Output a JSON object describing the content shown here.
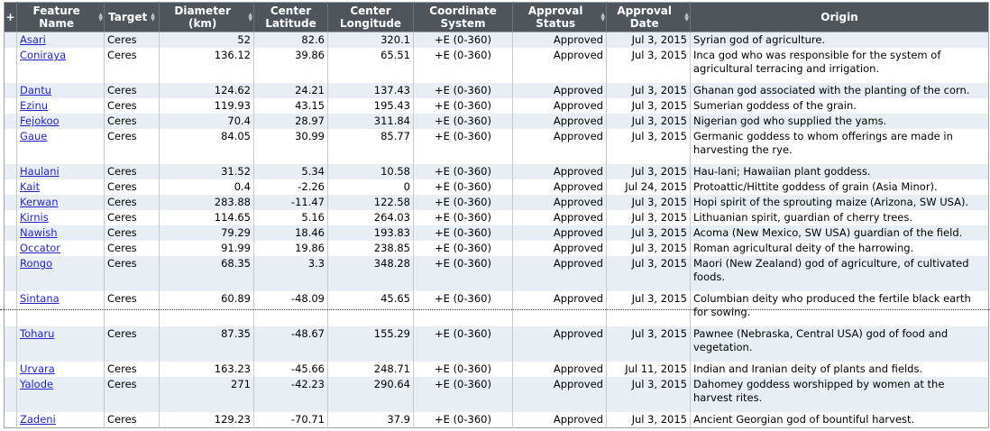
{
  "table": {
    "columns": [
      {
        "label": "+",
        "sortable": false
      },
      {
        "label": "Feature Name",
        "sortable": true
      },
      {
        "label": "Target",
        "sortable": true
      },
      {
        "label": "Diameter (km)",
        "sortable": true
      },
      {
        "label": "Center Latitude",
        "sortable": false
      },
      {
        "label": "Center Longitude",
        "sortable": false
      },
      {
        "label": "Coordinate System",
        "sortable": false
      },
      {
        "label": "Approval Status",
        "sortable": true
      },
      {
        "label": "Approval Date",
        "sortable": true
      },
      {
        "label": "Origin",
        "sortable": false
      }
    ],
    "rows": [
      {
        "name": "Asari",
        "target": "Ceres",
        "diameter": "52",
        "lat": "82.6",
        "lon": "320.1",
        "coord": "+E (0-360)",
        "status": "Approved",
        "date": "Jul 3, 2015",
        "origin": "Syrian god of agriculture."
      },
      {
        "name": "Coniraya",
        "target": "Ceres",
        "diameter": "136.12",
        "lat": "39.86",
        "lon": "65.51",
        "coord": "+E (0-360)",
        "status": "Approved",
        "date": "Jul 3, 2015",
        "origin": "Inca god who was responsible for the system of agricultural terracing and irrigation."
      },
      {
        "name": "Dantu",
        "target": "Ceres",
        "diameter": "124.62",
        "lat": "24.21",
        "lon": "137.43",
        "coord": "+E (0-360)",
        "status": "Approved",
        "date": "Jul 3, 2015",
        "origin": "Ghanan god associated with the planting of the corn."
      },
      {
        "name": "Ezinu",
        "target": "Ceres",
        "diameter": "119.93",
        "lat": "43.15",
        "lon": "195.43",
        "coord": "+E (0-360)",
        "status": "Approved",
        "date": "Jul 3, 2015",
        "origin": "Sumerian goddess of the grain."
      },
      {
        "name": "Fejokoo",
        "target": "Ceres",
        "diameter": "70.4",
        "lat": "28.97",
        "lon": "311.84",
        "coord": "+E (0-360)",
        "status": "Approved",
        "date": "Jul 3, 2015",
        "origin": "Nigerian god who supplied the yams."
      },
      {
        "name": "Gaue",
        "target": "Ceres",
        "diameter": "84.05",
        "lat": "30.99",
        "lon": "85.77",
        "coord": "+E (0-360)",
        "status": "Approved",
        "date": "Jul 3, 2015",
        "origin": "Germanic goddess to whom offerings are made in harvesting the rye."
      },
      {
        "name": "Haulani",
        "target": "Ceres",
        "diameter": "31.52",
        "lat": "5.34",
        "lon": "10.58",
        "coord": "+E (0-360)",
        "status": "Approved",
        "date": "Jul 3, 2015",
        "origin": "Hau-lani; Hawaiian plant goddess."
      },
      {
        "name": "Kait",
        "target": "Ceres",
        "diameter": "0.4",
        "lat": "-2.26",
        "lon": "0",
        "coord": "+E (0-360)",
        "status": "Approved",
        "date": "Jul 24, 2015",
        "origin": "Protoattic/Hittite goddess of grain (Asia Minor)."
      },
      {
        "name": "Kerwan",
        "target": "Ceres",
        "diameter": "283.88",
        "lat": "-11.47",
        "lon": "122.58",
        "coord": "+E (0-360)",
        "status": "Approved",
        "date": "Jul 3, 2015",
        "origin": "Hopi spirit of the sprouting maize (Arizona, SW USA)."
      },
      {
        "name": "Kirnis",
        "target": "Ceres",
        "diameter": "114.65",
        "lat": "5.16",
        "lon": "264.03",
        "coord": "+E (0-360)",
        "status": "Approved",
        "date": "Jul 3, 2015",
        "origin": "Lithuanian spirit, guardian of cherry trees."
      },
      {
        "name": "Nawish",
        "target": "Ceres",
        "diameter": "79.29",
        "lat": "18.46",
        "lon": "193.83",
        "coord": "+E (0-360)",
        "status": "Approved",
        "date": "Jul 3, 2015",
        "origin": "Acoma (New Mexico, SW USA) guardian of the field."
      },
      {
        "name": "Occator",
        "target": "Ceres",
        "diameter": "91.99",
        "lat": "19.86",
        "lon": "238.85",
        "coord": "+E (0-360)",
        "status": "Approved",
        "date": "Jul 3, 2015",
        "origin": "Roman agricultural deity of the harrowing."
      },
      {
        "name": "Rongo",
        "target": "Ceres",
        "diameter": "68.35",
        "lat": "3.3",
        "lon": "348.28",
        "coord": "+E (0-360)",
        "status": "Approved",
        "date": "Jul 3, 2015",
        "origin": "Maori (New Zealand) god of agriculture, of cultivated foods."
      },
      {
        "name": "Sintana",
        "target": "Ceres",
        "diameter": "60.89",
        "lat": "-48.09",
        "lon": "45.65",
        "coord": "+E (0-360)",
        "status": "Approved",
        "date": "Jul 3, 2015",
        "origin": "Columbian deity who produced the fertile black earth for sowing."
      },
      {
        "name": "Toharu",
        "target": "Ceres",
        "diameter": "87.35",
        "lat": "-48.67",
        "lon": "155.29",
        "coord": "+E (0-360)",
        "status": "Approved",
        "date": "Jul 3, 2015",
        "origin": "Pawnee (Nebraska, Central USA) god of food and vegetation."
      },
      {
        "name": "Urvara",
        "target": "Ceres",
        "diameter": "163.23",
        "lat": "-45.66",
        "lon": "248.71",
        "coord": "+E (0-360)",
        "status": "Approved",
        "date": "Jul 11, 2015",
        "origin": "Indian and Iranian deity of plants and fields."
      },
      {
        "name": "Yalode",
        "target": "Ceres",
        "diameter": "271",
        "lat": "-42.23",
        "lon": "290.64",
        "coord": "+E (0-360)",
        "status": "Approved",
        "date": "Jul 3, 2015",
        "origin": "Dahomey goddess worshipped by women at the harvest rites."
      },
      {
        "name": "Zadeni",
        "target": "Ceres",
        "diameter": "129.23",
        "lat": "-70.71",
        "lon": "37.9",
        "coord": "+E (0-360)",
        "status": "Approved",
        "date": "Jul 3, 2015",
        "origin": "Ancient Georgian god of bountiful harvest."
      }
    ]
  },
  "icons": {
    "sort_asc": "▲",
    "sort_desc": "▼"
  },
  "colors": {
    "header_bg": "#4e565c",
    "header_text": "#ffffff",
    "alt_row_bg": "#e8eef3",
    "link": "#2424cc",
    "sort_arrow": "#c2c8cc"
  }
}
